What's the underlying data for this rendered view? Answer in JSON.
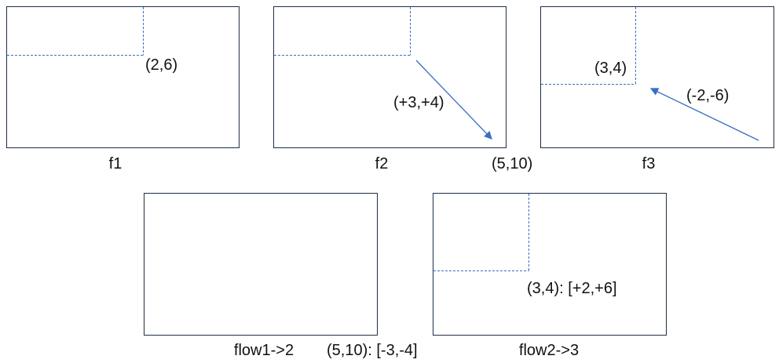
{
  "colors": {
    "frame_border": "#1f2f45",
    "dashed_line": "#3a6fc2",
    "arrow": "#3a6fc2",
    "text": "#111111"
  },
  "panels": {
    "f1": {
      "caption": "f1",
      "point_label": "(2,6)"
    },
    "f2": {
      "caption": "f2",
      "vector_label": "(+3,+4)",
      "end_label": "(5,10)"
    },
    "f3": {
      "caption": "f3",
      "point_label": "(3,4)",
      "vector_label": "(-2,-6)"
    },
    "flow12": {
      "caption": "flow1->2",
      "value_label": "(5,10): [-3,-4]"
    },
    "flow23": {
      "caption": "flow2->3",
      "value_label": "(3,4): [+2,+6]"
    }
  }
}
